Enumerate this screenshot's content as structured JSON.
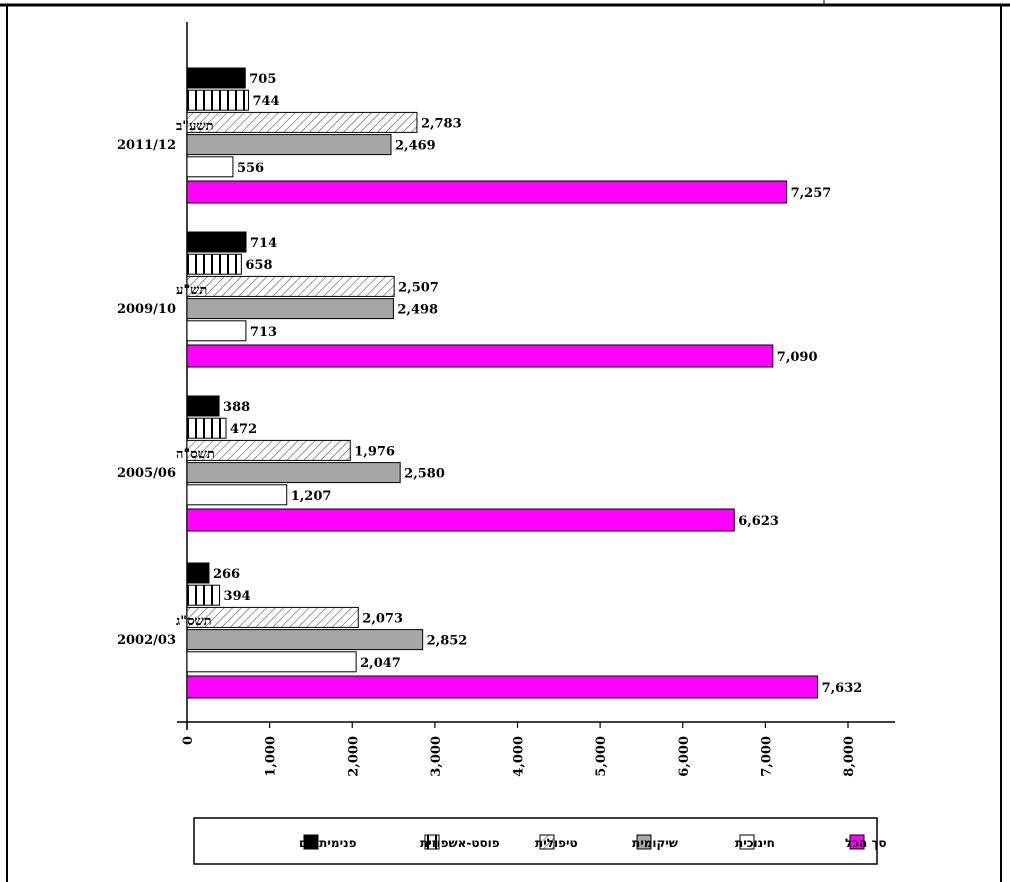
{
  "chart_data": {
    "type": "bar",
    "orientation": "horizontal",
    "categories": [
      {
        "label": "תשע\"ב",
        "sublabel": "2011/12"
      },
      {
        "label": "תש\"ע",
        "sublabel": "2009/10"
      },
      {
        "label": "תשס\"ה",
        "sublabel": "2005/06"
      },
      {
        "label": "תשס\"ג",
        "sublabel": "2002/03"
      }
    ],
    "series": [
      {
        "name": "פנימית יום",
        "pattern": "solid-black",
        "color": "#000000",
        "values": [
          705,
          714,
          388,
          266
        ],
        "value_labels": [
          "705",
          "714",
          "388",
          "266"
        ]
      },
      {
        "name": "פוסט-אשפוזית",
        "pattern": "vertical-lines",
        "color": "#000000",
        "values": [
          744,
          658,
          472,
          394
        ],
        "value_labels": [
          "744",
          "658",
          "472",
          "394"
        ]
      },
      {
        "name": "טיפולית",
        "pattern": "diagonal-hatch",
        "color": "#555555",
        "values": [
          2783,
          2507,
          1976,
          2073
        ],
        "value_labels": [
          "2,783",
          "2,507",
          "1,976",
          "2,073"
        ]
      },
      {
        "name": "שיקומית",
        "pattern": "solid-gray",
        "color": "#a6a6a6",
        "values": [
          2469,
          2498,
          2580,
          2852
        ],
        "value_labels": [
          "2,469",
          "2,498",
          "2,580",
          "2,852"
        ]
      },
      {
        "name": "חינוכית",
        "pattern": "solid-white",
        "color": "#ffffff",
        "values": [
          556,
          713,
          1207,
          2047
        ],
        "value_labels": [
          "556",
          "713",
          "1,207",
          "2,047"
        ]
      },
      {
        "name": "סך הכל",
        "pattern": "solid-magenta",
        "color": "#ff00ff",
        "values": [
          7257,
          7090,
          6623,
          7632
        ],
        "value_labels": [
          "7,257",
          "7,090",
          "6,623",
          "7,632"
        ]
      }
    ],
    "xlim": [
      0,
      8000
    ],
    "x_ticks": [
      0,
      1000,
      2000,
      3000,
      4000,
      5000,
      6000,
      7000,
      8000
    ],
    "x_tick_labels": [
      "0",
      "1,000",
      "2,000",
      "3,000",
      "4,000",
      "5,000",
      "6,000",
      "7,000",
      "8,000"
    ],
    "grid": false,
    "legend_placement": "bottom",
    "legend_order": [
      "סך הכל",
      "חינוכית",
      "שיקומית",
      "טיפולית",
      "פוסט-אשפוזית",
      "פנימית יום"
    ]
  }
}
